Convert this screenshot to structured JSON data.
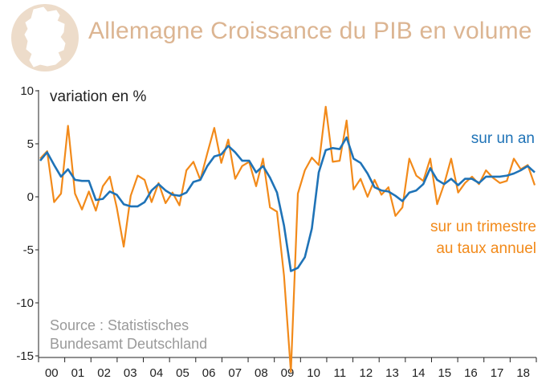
{
  "header": {
    "title": "Allemagne Croissance du PIB en volume",
    "icon": "germany-map-icon",
    "title_color": "#dcb592"
  },
  "chart_data": {
    "type": "line",
    "title": "Allemagne Croissance du PIB en volume",
    "ylabel": "variation en %",
    "xlabel": "",
    "ylim": [
      -15,
      10
    ],
    "yticks": [
      10,
      5,
      0,
      -5,
      -10,
      -15
    ],
    "ytick_labels": [
      "10",
      "5",
      "0",
      "-5",
      "-10",
      "-15"
    ],
    "x_categories": [
      "00",
      "01",
      "02",
      "03",
      "04",
      "05",
      "06",
      "07",
      "08",
      "09",
      "10",
      "11",
      "12",
      "13",
      "14",
      "15",
      "16",
      "17",
      "18"
    ],
    "x_unit": "year (quarterly data, 4 points per year)",
    "source": "Source : Statistisches\nBundesamt Deutschland",
    "source_lines": [
      "Source : Statistisches",
      "Bundesamt Deutschland"
    ],
    "series": [
      {
        "name": "sur un an",
        "color": "#1f73b7",
        "label_lines": [
          "sur un an"
        ],
        "start": 2000.0,
        "step": 0.25,
        "values": [
          3.4,
          4.2,
          3.0,
          1.9,
          2.6,
          1.6,
          1.5,
          1.5,
          -0.3,
          -0.2,
          0.5,
          0.2,
          -0.7,
          -0.9,
          -0.9,
          -0.5,
          0.6,
          1.2,
          0.6,
          0.2,
          0.1,
          0.4,
          1.4,
          1.6,
          2.9,
          3.8,
          4.0,
          4.8,
          4.2,
          3.4,
          3.4,
          2.3,
          2.9,
          1.8,
          0.4,
          -2.7,
          -7.0,
          -6.7,
          -5.7,
          -3.0,
          2.3,
          4.4,
          4.6,
          4.5,
          5.6,
          3.6,
          3.2,
          2.2,
          0.9,
          0.6,
          0.5,
          0.1,
          -0.4,
          0.4,
          0.6,
          1.2,
          2.7,
          1.6,
          1.2,
          1.7,
          1.1,
          1.7,
          1.7,
          1.3,
          1.9,
          1.9,
          1.9,
          2.0,
          2.2,
          2.5,
          2.9,
          2.3
        ]
      },
      {
        "name": "sur un trimestre au taux annuel",
        "color": "#f28a1a",
        "label_lines": [
          "sur un trimestre",
          "au taux annuel"
        ],
        "start": 2000.0,
        "step": 0.25,
        "values": [
          3.6,
          4.3,
          -0.5,
          0.3,
          6.7,
          0.3,
          -1.2,
          0.5,
          -1.3,
          1.0,
          1.9,
          -1.0,
          -4.7,
          0.1,
          2.0,
          1.6,
          -0.5,
          1.3,
          -0.6,
          0.4,
          -0.8,
          2.5,
          3.3,
          1.6,
          4.1,
          6.5,
          3.2,
          5.4,
          1.7,
          2.9,
          3.3,
          1.0,
          3.6,
          -1.0,
          -1.4,
          -7.4,
          -16.5,
          0.3,
          2.5,
          3.7,
          3.0,
          8.5,
          3.3,
          3.4,
          7.2,
          0.7,
          1.7,
          0.0,
          1.6,
          0.2,
          0.9,
          -1.8,
          -1.0,
          3.6,
          2.0,
          1.5,
          3.6,
          -0.7,
          1.2,
          3.6,
          0.4,
          1.3,
          1.9,
          1.2,
          2.5,
          1.8,
          1.3,
          1.5,
          3.6,
          2.6,
          3.0,
          1.1
        ]
      }
    ]
  }
}
